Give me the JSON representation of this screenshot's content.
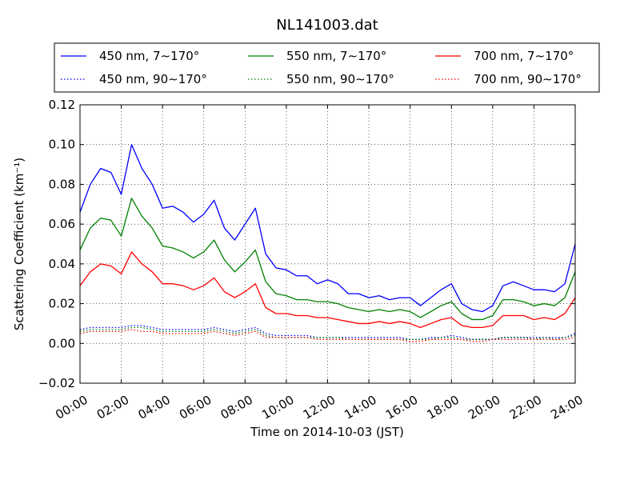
{
  "chart_data": {
    "type": "line",
    "title": "NL141003.dat",
    "xlabel": "Time on 2014-10-03 (JST)",
    "ylabel": "Scattering Coefficient (km⁻¹)",
    "xlim": [
      0,
      24
    ],
    "ylim": [
      -0.02,
      0.12
    ],
    "x_tick_labels": [
      "00:00",
      "02:00",
      "04:00",
      "06:00",
      "08:00",
      "10:00",
      "12:00",
      "14:00",
      "16:00",
      "18:00",
      "20:00",
      "22:00",
      "24:00"
    ],
    "y_tick_labels": [
      "−0.02",
      "0.00",
      "0.02",
      "0.04",
      "0.06",
      "0.08",
      "0.10",
      "0.12"
    ],
    "grid": true,
    "legend_position": "top",
    "x_unit": "hours (JST)",
    "x": [
      0,
      0.5,
      1,
      1.5,
      2,
      2.5,
      3,
      3.5,
      4,
      4.5,
      5,
      5.5,
      6,
      6.5,
      7,
      7.5,
      8,
      8.5,
      9,
      9.5,
      10,
      10.5,
      11,
      11.5,
      12,
      12.5,
      13,
      13.5,
      14,
      14.5,
      15,
      15.5,
      16,
      16.5,
      17,
      17.5,
      18,
      18.5,
      19,
      19.5,
      20,
      20.5,
      21,
      21.5,
      22,
      22.5,
      23,
      23.5,
      24
    ],
    "series": [
      {
        "name": "450 nm, 7∼170°",
        "color": "#0000ff",
        "style": "solid",
        "values": [
          0.066,
          0.08,
          0.088,
          0.086,
          0.075,
          0.1,
          0.088,
          0.08,
          0.068,
          0.069,
          0.066,
          0.061,
          0.065,
          0.072,
          0.058,
          0.052,
          0.06,
          0.068,
          0.045,
          0.038,
          0.037,
          0.034,
          0.034,
          0.03,
          0.032,
          0.03,
          0.025,
          0.025,
          0.023,
          0.024,
          0.022,
          0.023,
          0.023,
          0.019,
          0.023,
          0.027,
          0.03,
          0.02,
          0.017,
          0.016,
          0.019,
          0.029,
          0.031,
          0.029,
          0.027,
          0.027,
          0.026,
          0.03,
          0.05
        ]
      },
      {
        "name": "550 nm, 7∼170°",
        "color": "#008000",
        "style": "solid",
        "values": [
          0.047,
          0.058,
          0.063,
          0.062,
          0.054,
          0.073,
          0.064,
          0.058,
          0.049,
          0.048,
          0.046,
          0.043,
          0.046,
          0.052,
          0.042,
          0.036,
          0.041,
          0.047,
          0.031,
          0.025,
          0.024,
          0.022,
          0.022,
          0.021,
          0.021,
          0.02,
          0.018,
          0.017,
          0.016,
          0.017,
          0.016,
          0.017,
          0.016,
          0.013,
          0.016,
          0.019,
          0.021,
          0.015,
          0.012,
          0.012,
          0.014,
          0.022,
          0.022,
          0.021,
          0.019,
          0.02,
          0.019,
          0.023,
          0.036
        ]
      },
      {
        "name": "700 nm, 7∼170°",
        "color": "#ff0000",
        "style": "solid",
        "values": [
          0.029,
          0.036,
          0.04,
          0.039,
          0.035,
          0.046,
          0.04,
          0.036,
          0.03,
          0.03,
          0.029,
          0.027,
          0.029,
          0.033,
          0.026,
          0.023,
          0.026,
          0.03,
          0.018,
          0.015,
          0.015,
          0.014,
          0.014,
          0.013,
          0.013,
          0.012,
          0.011,
          0.01,
          0.01,
          0.011,
          0.01,
          0.011,
          0.01,
          0.008,
          0.01,
          0.012,
          0.013,
          0.009,
          0.008,
          0.008,
          0.009,
          0.014,
          0.014,
          0.014,
          0.012,
          0.013,
          0.012,
          0.015,
          0.023
        ]
      },
      {
        "name": "450 nm, 90∼170°",
        "color": "#0000ff",
        "style": "dotted",
        "values": [
          0.007,
          0.008,
          0.008,
          0.008,
          0.008,
          0.009,
          0.009,
          0.008,
          0.007,
          0.007,
          0.007,
          0.007,
          0.007,
          0.008,
          0.007,
          0.006,
          0.007,
          0.008,
          0.005,
          0.004,
          0.004,
          0.004,
          0.004,
          0.003,
          0.003,
          0.003,
          0.003,
          0.003,
          0.003,
          0.003,
          0.003,
          0.003,
          0.002,
          0.002,
          0.003,
          0.003,
          0.004,
          0.003,
          0.002,
          0.002,
          0.002,
          0.003,
          0.003,
          0.003,
          0.003,
          0.003,
          0.003,
          0.003,
          0.005
        ]
      },
      {
        "name": "550 nm, 90∼170°",
        "color": "#008000",
        "style": "dotted",
        "values": [
          0.006,
          0.007,
          0.007,
          0.007,
          0.007,
          0.008,
          0.008,
          0.007,
          0.006,
          0.006,
          0.006,
          0.006,
          0.006,
          0.007,
          0.006,
          0.005,
          0.006,
          0.007,
          0.004,
          0.003,
          0.003,
          0.003,
          0.003,
          0.003,
          0.003,
          0.003,
          0.002,
          0.002,
          0.002,
          0.002,
          0.002,
          0.002,
          0.002,
          0.002,
          0.002,
          0.003,
          0.003,
          0.002,
          0.002,
          0.002,
          0.002,
          0.003,
          0.003,
          0.003,
          0.002,
          0.003,
          0.002,
          0.003,
          0.004
        ]
      },
      {
        "name": "700 nm, 90∼170°",
        "color": "#ff0000",
        "style": "dotted",
        "values": [
          0.005,
          0.006,
          0.006,
          0.006,
          0.006,
          0.007,
          0.006,
          0.006,
          0.005,
          0.005,
          0.005,
          0.005,
          0.005,
          0.006,
          0.005,
          0.004,
          0.005,
          0.006,
          0.003,
          0.003,
          0.003,
          0.003,
          0.003,
          0.002,
          0.002,
          0.002,
          0.002,
          0.002,
          0.002,
          0.002,
          0.002,
          0.002,
          0.001,
          0.001,
          0.002,
          0.002,
          0.002,
          0.002,
          0.001,
          0.001,
          0.002,
          0.002,
          0.002,
          0.002,
          0.002,
          0.002,
          0.002,
          0.002,
          0.003
        ]
      }
    ]
  }
}
